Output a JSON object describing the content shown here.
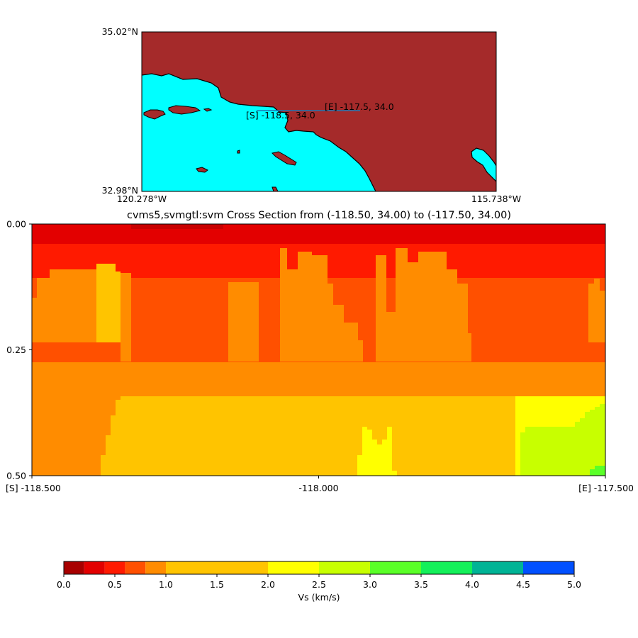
{
  "map": {
    "lat_top": "35.02°N",
    "lat_bottom": "32.98°N",
    "lon_left": "120.278°W",
    "lon_right": "115.738°W",
    "label_start": "[S] -118.5, 34.0",
    "label_end": "[E] -117.5, 34.0",
    "land_color": "#a52a2a",
    "water_color": "#00ffff",
    "line_color": "#1f77b4"
  },
  "cross_section": {
    "title": "cvms5,svmgtl:svm Cross Section from (-118.50, 34.00) to (-117.50, 34.00)"
  },
  "colorbar": {
    "label": "Vs (km/s)",
    "tick_labels": [
      "0.0",
      "0.5",
      "1.0",
      "1.5",
      "2.0",
      "2.5",
      "3.0",
      "3.5",
      "4.0",
      "4.5",
      "5.0"
    ]
  },
  "chart_data": [
    {
      "type": "map",
      "extent": {
        "lon_min": -120.278,
        "lon_max": -115.738,
        "lat_min": 32.98,
        "lat_max": 35.02
      },
      "line": {
        "start": [
          -118.5,
          34.0
        ],
        "end": [
          -117.5,
          34.0
        ]
      }
    },
    {
      "type": "heatmap",
      "title": "cvms5,svmgtl:svm Cross Section from (-118.50, 34.00) to (-117.50, 34.00)",
      "x_ticks": [
        {
          "value": -118.5,
          "label": "[S] -118.500"
        },
        {
          "value": -118.0,
          "label": "-118.000"
        },
        {
          "value": -117.5,
          "label": "[E] -117.500"
        }
      ],
      "y_ticks": [
        {
          "value": 0.0,
          "label": "0.00"
        },
        {
          "value": 0.25,
          "label": "0.25"
        },
        {
          "value": 0.5,
          "label": "0.50"
        }
      ],
      "xlim": [
        -118.5,
        -117.5
      ],
      "ylim": [
        0.5,
        0.0
      ],
      "colorbar": {
        "label": "Vs (km/s)",
        "boundaries": [
          0.0,
          0.2,
          0.4,
          0.6,
          0.8,
          1.0,
          1.5,
          2.0,
          2.5,
          3.0,
          3.5,
          4.0,
          4.5,
          5.0
        ],
        "colors": [
          "#a80000",
          "#e30000",
          "#ff1a00",
          "#ff5000",
          "#ff8c00",
          "#ffc400",
          "#ffc400",
          "#ffff00",
          "#c8ff00",
          "#5aff28",
          "#14f05a",
          "#00b496",
          "#0050ff"
        ]
      },
      "layers": [
        {
          "vs_band": "0.2-0.4",
          "depth_from": 0.0,
          "depth_to": 0.04,
          "lon_from": -118.5,
          "lon_to": -117.5
        },
        {
          "vs_band": "0.4-0.6",
          "depth_from": 0.04,
          "depth_to": 0.1,
          "lon_from": -118.5,
          "lon_to": -117.5
        },
        {
          "vs_band": "0.6-0.8",
          "depth_from": 0.1,
          "depth_to": 0.27,
          "lon_from": -118.5,
          "lon_to": -117.5
        },
        {
          "vs_band": "0.8-1.0",
          "depth_from": 0.27,
          "depth_to": 0.5,
          "lon_from": -118.5,
          "lon_to": -117.5
        },
        {
          "vs_band": "1.0-1.5",
          "depth_from": 0.34,
          "depth_to": 0.5,
          "lon_from": -118.38,
          "lon_to": -117.66
        },
        {
          "vs_band": "1.5-2.0",
          "depth_from": 0.34,
          "depth_to": 0.5,
          "lon_from": -117.66,
          "lon_to": -117.5
        },
        {
          "vs_band": "2.5-3.0",
          "depth_from": 0.4,
          "depth_to": 0.5,
          "lon_from": -117.65,
          "lon_to": -117.5
        }
      ]
    }
  ]
}
